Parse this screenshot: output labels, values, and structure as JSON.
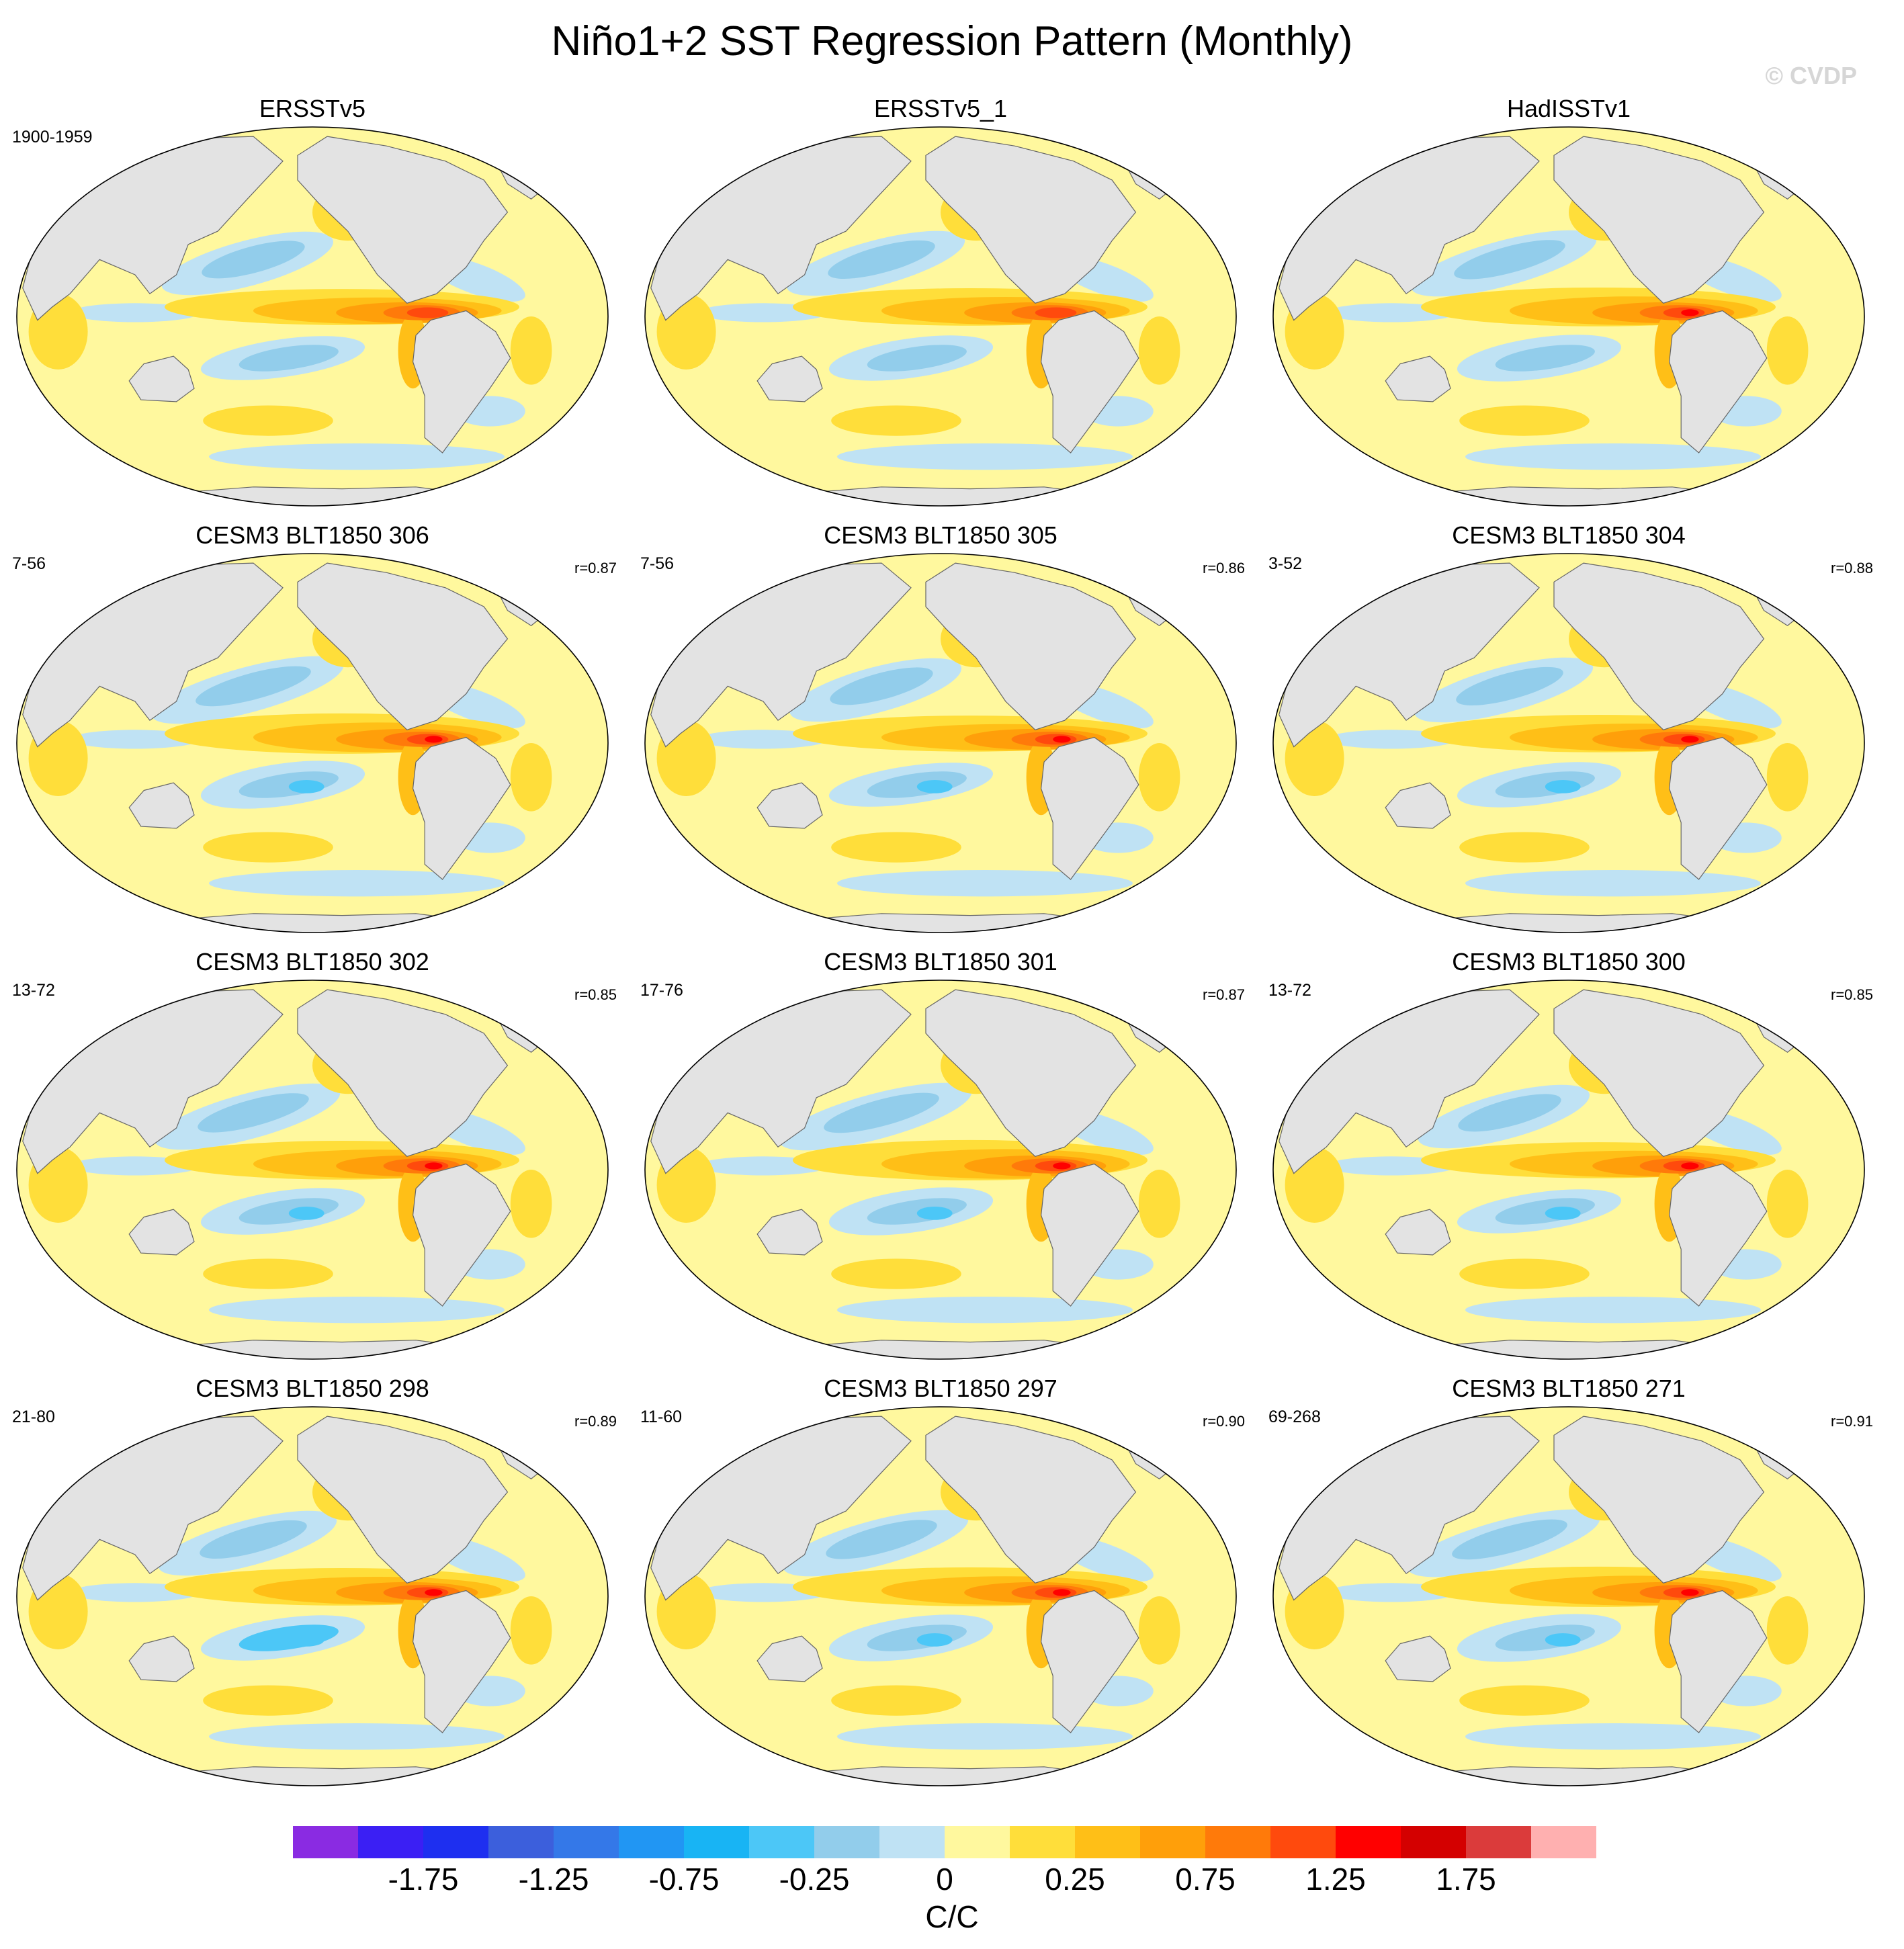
{
  "title": "Niño1+2 SST Regression Pattern (Monthly)",
  "watermark": "© CVDP",
  "colors": {
    "land": "#e3e3e3",
    "coast": "#666666",
    "levels": [
      "#8a2be2",
      "#3b1ff4",
      "#1e2ff0",
      "#3c5fdc",
      "#3478e8",
      "#2196f3",
      "#18b4f4",
      "#4cc7f7",
      "#92cdeb",
      "#bfe2f4",
      "#fff89e",
      "#ffde3a",
      "#ffbf17",
      "#ff9f0a",
      "#ff7a0a",
      "#ff4a0d",
      "#ff0000",
      "#d40000",
      "#db3b3b",
      "#ffb0b0"
    ]
  },
  "panels": [
    {
      "title": "ERSSTv5",
      "years": "1900-1959",
      "corr": "",
      "variant": 0
    },
    {
      "title": "ERSSTv5_1",
      "years": "",
      "corr": "",
      "variant": 1
    },
    {
      "title": "HadISSTv1",
      "years": "",
      "corr": "",
      "variant": 2
    },
    {
      "title": "CESM3 BLT1850 306",
      "years": "7-56",
      "corr": "r=0.87",
      "variant": 3
    },
    {
      "title": "CESM3 BLT1850 305",
      "years": "7-56",
      "corr": "r=0.86",
      "variant": 4
    },
    {
      "title": "CESM3 BLT1850 304",
      "years": "3-52",
      "corr": "r=0.88",
      "variant": 5
    },
    {
      "title": "CESM3 BLT1850 302",
      "years": "13-72",
      "corr": "r=0.85",
      "variant": 6
    },
    {
      "title": "CESM3 BLT1850 301",
      "years": "17-76",
      "corr": "r=0.87",
      "variant": 7
    },
    {
      "title": "CESM3 BLT1850 300",
      "years": "13-72",
      "corr": "r=0.85",
      "variant": 8
    },
    {
      "title": "CESM3 BLT1850 298",
      "years": "21-80",
      "corr": "r=0.89",
      "variant": 9
    },
    {
      "title": "CESM3 BLT1850 297",
      "years": "11-60",
      "corr": "r=0.90",
      "variant": 10
    },
    {
      "title": "CESM3 BLT1850 271",
      "years": "69-268",
      "corr": "r=0.91",
      "variant": 11
    }
  ],
  "colorbar": {
    "ticks": [
      {
        "index": 1,
        "label": "-1.75"
      },
      {
        "index": 3,
        "label": "-1.25"
      },
      {
        "index": 5,
        "label": "-0.75"
      },
      {
        "index": 7,
        "label": "-0.25"
      },
      {
        "index": 9,
        "label": "0"
      },
      {
        "index": 11,
        "label": "0.25"
      },
      {
        "index": 13,
        "label": "0.75"
      },
      {
        "index": 15,
        "label": "1.25"
      },
      {
        "index": 17,
        "label": "1.75"
      }
    ],
    "unit": "C/C"
  }
}
